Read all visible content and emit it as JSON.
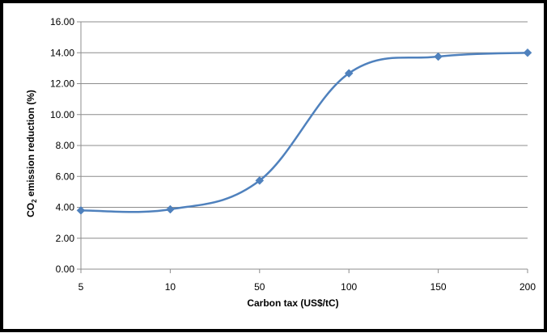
{
  "chart_data": {
    "type": "line",
    "title": "",
    "xlabel": "Carbon tax (US$/tC)",
    "ylabel": "CO",
    "ylabel_sub": "2",
    "ylabel_rest": " emission reduction (%)",
    "categories": [
      "5",
      "10",
      "50",
      "100",
      "150",
      "200"
    ],
    "series": [
      {
        "values": [
          3.8,
          3.87,
          5.73,
          12.67,
          13.75,
          14.0
        ]
      }
    ],
    "ylim": [
      0,
      16
    ],
    "yticks": [
      "0.00",
      "2.00",
      "4.00",
      "6.00",
      "8.00",
      "10.00",
      "12.00",
      "14.00",
      "16.00"
    ],
    "grid": true,
    "legend": "none",
    "colors": {
      "line": "#4f81bd",
      "grid": "#8c8c8c",
      "axis": "#8c8c8c"
    },
    "marker": "diamond"
  }
}
